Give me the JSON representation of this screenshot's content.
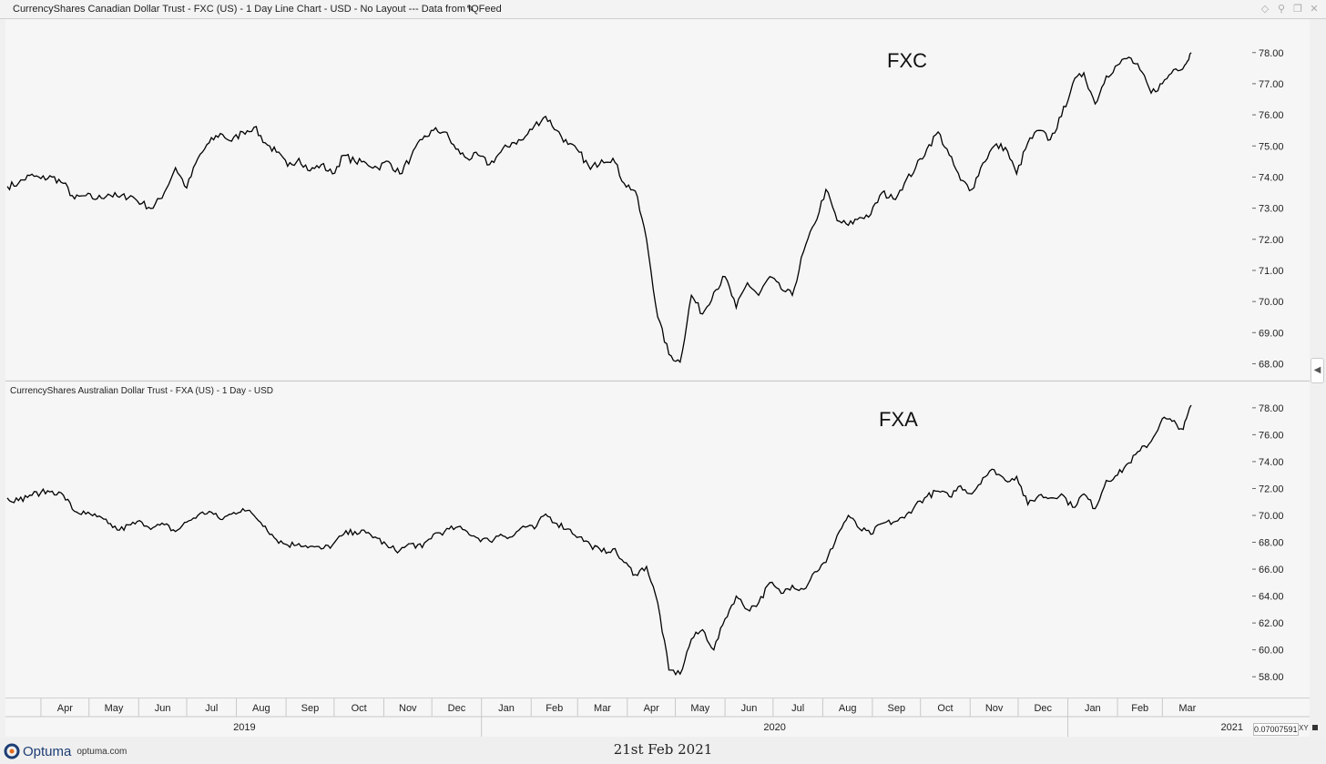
{
  "window": {
    "title": "CurrencyShares Canadian Dollar Trust - FXC (US) - 1 Day Line Chart - USD - No Layout --- Data from IQFeed"
  },
  "footer": {
    "logo_text": "Optuma",
    "logo_url": "optuma.com",
    "date": "21st Feb 2021"
  },
  "controls": {
    "zoom_value": "0.07007591",
    "xy_label": "XY"
  },
  "chart_data": [
    {
      "type": "line",
      "title": "",
      "annotation": "FXC",
      "pane_label": "",
      "y_ticks": [
        "68.00",
        "69.00",
        "70.00",
        "71.00",
        "72.00",
        "73.00",
        "74.00",
        "75.00",
        "76.00",
        "77.00",
        "78.00"
      ],
      "ylim": [
        67.75,
        78.9
      ],
      "series": [
        {
          "values": [
            [
              "2019-03-11",
              73.7
            ],
            [
              "2019-03-18",
              73.8
            ],
            [
              "2019-03-25",
              74.05
            ],
            [
              "2019-04-01",
              73.95
            ],
            [
              "2019-04-08",
              74.0
            ],
            [
              "2019-04-15",
              73.8
            ],
            [
              "2019-04-22",
              73.3
            ],
            [
              "2019-04-29",
              73.4
            ],
            [
              "2019-05-06",
              73.3
            ],
            [
              "2019-05-13",
              73.45
            ],
            [
              "2019-05-20",
              73.35
            ],
            [
              "2019-05-27",
              73.4
            ],
            [
              "2019-06-03",
              73.15
            ],
            [
              "2019-06-10",
              73.0
            ],
            [
              "2019-06-17",
              73.5
            ],
            [
              "2019-06-24",
              74.3
            ],
            [
              "2019-07-01",
              73.65
            ],
            [
              "2019-07-08",
              74.6
            ],
            [
              "2019-07-15",
              75.1
            ],
            [
              "2019-07-22",
              75.4
            ],
            [
              "2019-07-29",
              75.15
            ],
            [
              "2019-08-05",
              75.45
            ],
            [
              "2019-08-12",
              75.6
            ],
            [
              "2019-08-19",
              75.1
            ],
            [
              "2019-08-26",
              74.8
            ],
            [
              "2019-09-02",
              74.35
            ],
            [
              "2019-09-09",
              74.6
            ],
            [
              "2019-09-16",
              74.2
            ],
            [
              "2019-09-23",
              74.4
            ],
            [
              "2019-09-30",
              74.1
            ],
            [
              "2019-10-07",
              74.7
            ],
            [
              "2019-10-14",
              74.5
            ],
            [
              "2019-10-21",
              74.45
            ],
            [
              "2019-10-28",
              74.3
            ],
            [
              "2019-11-04",
              74.5
            ],
            [
              "2019-11-11",
              74.1
            ],
            [
              "2019-11-18",
              74.65
            ],
            [
              "2019-11-25",
              75.2
            ],
            [
              "2019-12-02",
              75.5
            ],
            [
              "2019-12-09",
              75.45
            ],
            [
              "2019-12-16",
              74.9
            ],
            [
              "2019-12-23",
              74.6
            ],
            [
              "2019-12-30",
              74.7
            ],
            [
              "2020-01-06",
              74.4
            ],
            [
              "2020-01-13",
              74.8
            ],
            [
              "2020-01-20",
              75.1
            ],
            [
              "2020-01-27",
              75.2
            ],
            [
              "2020-02-03",
              75.65
            ],
            [
              "2020-02-10",
              75.95
            ],
            [
              "2020-02-17",
              75.5
            ],
            [
              "2020-02-24",
              75.05
            ],
            [
              "2020-03-02",
              74.8
            ],
            [
              "2020-03-09",
              74.25
            ],
            [
              "2020-03-16",
              74.55
            ],
            [
              "2020-03-23",
              74.6
            ],
            [
              "2020-03-30",
              73.8
            ],
            [
              "2020-04-06",
              73.55
            ],
            [
              "2020-04-13",
              72.0
            ],
            [
              "2020-04-20",
              69.5
            ],
            [
              "2020-04-27",
              68.3
            ],
            [
              "2020-05-04",
              68.05
            ],
            [
              "2020-05-11",
              70.2
            ],
            [
              "2020-05-18",
              69.6
            ],
            [
              "2020-05-25",
              70.3
            ],
            [
              "2020-06-01",
              70.8
            ],
            [
              "2020-06-08",
              69.8
            ],
            [
              "2020-06-15",
              70.6
            ],
            [
              "2020-06-22",
              70.2
            ],
            [
              "2020-06-29",
              70.8
            ],
            [
              "2020-07-06",
              70.4
            ],
            [
              "2020-07-13",
              70.2
            ],
            [
              "2020-07-20",
              71.6
            ],
            [
              "2020-07-27",
              72.5
            ],
            [
              "2020-08-03",
              73.6
            ],
            [
              "2020-08-10",
              72.6
            ],
            [
              "2020-08-17",
              72.45
            ],
            [
              "2020-08-24",
              72.7
            ],
            [
              "2020-08-31",
              72.8
            ],
            [
              "2020-09-07",
              73.5
            ],
            [
              "2020-09-14",
              73.3
            ],
            [
              "2020-09-21",
              73.8
            ],
            [
              "2020-09-28",
              74.3
            ],
            [
              "2020-10-05",
              74.9
            ],
            [
              "2020-10-12",
              75.45
            ],
            [
              "2020-10-19",
              74.7
            ],
            [
              "2020-10-26",
              73.9
            ],
            [
              "2020-11-02",
              73.6
            ],
            [
              "2020-11-09",
              74.45
            ],
            [
              "2020-11-16",
              75.0
            ],
            [
              "2020-11-23",
              74.95
            ],
            [
              "2020-11-30",
              74.1
            ],
            [
              "2020-12-07",
              75.1
            ],
            [
              "2020-12-14",
              75.5
            ],
            [
              "2020-12-21",
              75.2
            ],
            [
              "2020-12-28",
              75.95
            ],
            [
              "2021-01-04",
              77.0
            ],
            [
              "2021-01-11",
              77.35
            ],
            [
              "2021-01-18",
              76.35
            ],
            [
              "2021-01-25",
              77.25
            ],
            [
              "2021-02-01",
              77.6
            ],
            [
              "2021-02-08",
              77.85
            ],
            [
              "2021-02-15",
              77.45
            ],
            [
              "2021-02-22",
              76.7
            ],
            [
              "2021-03-01",
              77.0
            ],
            [
              "2021-03-08",
              77.45
            ],
            [
              "2021-03-15",
              77.6
            ],
            [
              "2021-03-19",
              78.0
            ]
          ]
        }
      ]
    },
    {
      "type": "line",
      "title": "",
      "annotation": "FXA",
      "pane_label": "CurrencyShares Australian Dollar Trust - FXA (US) - 1 Day - USD",
      "y_ticks": [
        "58.00",
        "60.00",
        "62.00",
        "64.00",
        "66.00",
        "68.00",
        "70.00",
        "72.00",
        "74.00",
        "76.00",
        "78.00"
      ],
      "ylim": [
        57.2,
        78.6
      ],
      "series": [
        {
          "values": [
            [
              "2019-03-11",
              71.3
            ],
            [
              "2019-03-18",
              71.1
            ],
            [
              "2019-03-25",
              71.5
            ],
            [
              "2019-04-01",
              71.7
            ],
            [
              "2019-04-08",
              71.8
            ],
            [
              "2019-04-15",
              71.5
            ],
            [
              "2019-04-22",
              70.3
            ],
            [
              "2019-04-29",
              70.1
            ],
            [
              "2019-05-06",
              69.9
            ],
            [
              "2019-05-13",
              69.4
            ],
            [
              "2019-05-20",
              68.9
            ],
            [
              "2019-05-27",
              69.3
            ],
            [
              "2019-06-03",
              69.5
            ],
            [
              "2019-06-10",
              69.1
            ],
            [
              "2019-06-17",
              69.3
            ],
            [
              "2019-06-24",
              68.8
            ],
            [
              "2019-07-01",
              69.5
            ],
            [
              "2019-07-08",
              70.0
            ],
            [
              "2019-07-15",
              70.3
            ],
            [
              "2019-07-22",
              69.7
            ],
            [
              "2019-07-29",
              70.1
            ],
            [
              "2019-08-05",
              70.5
            ],
            [
              "2019-08-12",
              70.0
            ],
            [
              "2019-08-19",
              69.2
            ],
            [
              "2019-08-26",
              68.2
            ],
            [
              "2019-09-02",
              67.8
            ],
            [
              "2019-09-09",
              67.9
            ],
            [
              "2019-09-16",
              67.7
            ],
            [
              "2019-09-23",
              67.5
            ],
            [
              "2019-09-30",
              67.8
            ],
            [
              "2019-10-07",
              68.6
            ],
            [
              "2019-10-14",
              68.8
            ],
            [
              "2019-10-21",
              68.7
            ],
            [
              "2019-10-28",
              68.3
            ],
            [
              "2019-11-04",
              67.6
            ],
            [
              "2019-11-11",
              67.4
            ],
            [
              "2019-11-18",
              67.9
            ],
            [
              "2019-11-25",
              67.6
            ],
            [
              "2019-12-02",
              68.6
            ],
            [
              "2019-12-09",
              68.8
            ],
            [
              "2019-12-16",
              69.1
            ],
            [
              "2019-12-23",
              68.8
            ],
            [
              "2019-12-30",
              68.3
            ],
            [
              "2020-01-06",
              68.1
            ],
            [
              "2020-01-13",
              68.6
            ],
            [
              "2020-01-20",
              68.4
            ],
            [
              "2020-01-27",
              69.2
            ],
            [
              "2020-02-03",
              69.0
            ],
            [
              "2020-02-10",
              70.1
            ],
            [
              "2020-02-17",
              69.4
            ],
            [
              "2020-02-24",
              69.0
            ],
            [
              "2020-03-02",
              68.4
            ],
            [
              "2020-03-09",
              67.8
            ],
            [
              "2020-03-16",
              67.3
            ],
            [
              "2020-03-23",
              67.5
            ],
            [
              "2020-03-30",
              66.5
            ],
            [
              "2020-04-06",
              65.6
            ],
            [
              "2020-04-13",
              66.2
            ],
            [
              "2020-04-20",
              63.5
            ],
            [
              "2020-04-27",
              58.5
            ],
            [
              "2020-05-04",
              58.2
            ],
            [
              "2020-05-11",
              60.8
            ],
            [
              "2020-05-18",
              61.5
            ],
            [
              "2020-05-25",
              60.0
            ],
            [
              "2020-06-01",
              62.3
            ],
            [
              "2020-06-08",
              64.0
            ],
            [
              "2020-06-15",
              63.0
            ],
            [
              "2020-06-22",
              63.5
            ],
            [
              "2020-06-29",
              65.0
            ],
            [
              "2020-07-06",
              64.2
            ],
            [
              "2020-07-13",
              64.8
            ],
            [
              "2020-07-20",
              64.5
            ],
            [
              "2020-07-27",
              65.8
            ],
            [
              "2020-08-03",
              66.5
            ],
            [
              "2020-08-10",
              68.5
            ],
            [
              "2020-08-17",
              70.0
            ],
            [
              "2020-08-24",
              69.0
            ],
            [
              "2020-08-31",
              68.6
            ],
            [
              "2020-09-07",
              69.4
            ],
            [
              "2020-09-14",
              69.5
            ],
            [
              "2020-09-21",
              69.8
            ],
            [
              "2020-09-28",
              70.8
            ],
            [
              "2020-10-05",
              71.4
            ],
            [
              "2020-10-12",
              71.8
            ],
            [
              "2020-10-19",
              71.4
            ],
            [
              "2020-10-26",
              72.2
            ],
            [
              "2020-11-02",
              71.6
            ],
            [
              "2020-11-09",
              72.8
            ],
            [
              "2020-11-16",
              73.4
            ],
            [
              "2020-11-23",
              72.6
            ],
            [
              "2020-11-30",
              72.9
            ],
            [
              "2020-12-07",
              70.8
            ],
            [
              "2020-12-14",
              71.5
            ],
            [
              "2020-12-21",
              71.3
            ],
            [
              "2020-12-28",
              71.6
            ],
            [
              "2021-01-04",
              70.6
            ],
            [
              "2021-01-11",
              71.6
            ],
            [
              "2021-01-18",
              70.5
            ],
            [
              "2021-01-25",
              72.6
            ],
            [
              "2021-02-01",
              73.0
            ],
            [
              "2021-02-08",
              73.9
            ],
            [
              "2021-02-15",
              74.8
            ],
            [
              "2021-02-22",
              75.5
            ],
            [
              "2021-02-29",
              77.2
            ],
            [
              "2021-03-07",
              77.0
            ],
            [
              "2021-03-14",
              76.4
            ],
            [
              "2021-03-19",
              78.2
            ]
          ]
        }
      ]
    }
  ],
  "x_axis": {
    "months": [
      "Apr",
      "May",
      "Jun",
      "Jul",
      "Aug",
      "Sep",
      "Oct",
      "Nov",
      "Dec",
      "Jan",
      "Feb",
      "Mar",
      "Apr",
      "May",
      "Jun",
      "Jul",
      "Aug",
      "Sep",
      "Oct",
      "Nov",
      "Dec",
      "Jan",
      "Feb",
      "Mar"
    ],
    "years": [
      "2019",
      "2020",
      "2021"
    ]
  },
  "colors": {
    "line": "#000000",
    "background": "#f6f6f6",
    "grid_border": "#d0d0d0"
  }
}
